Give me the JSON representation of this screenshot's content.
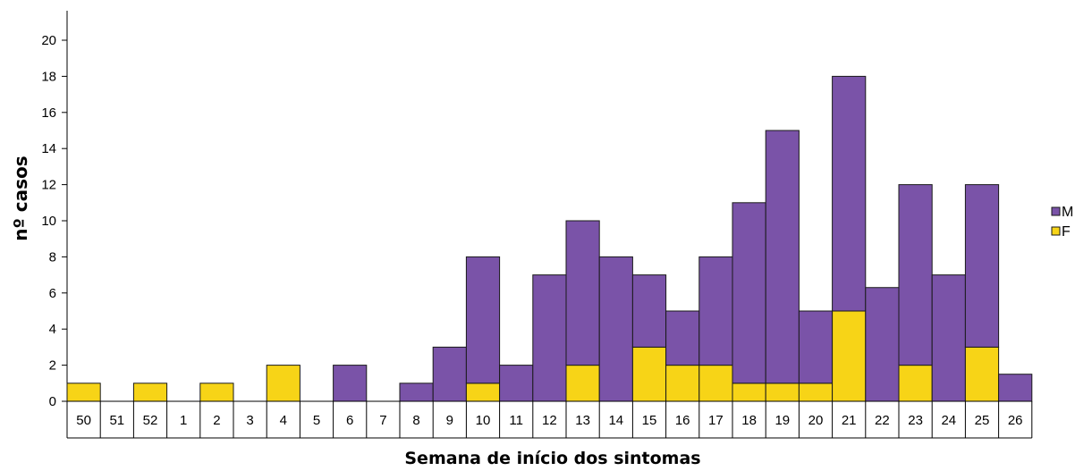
{
  "chart_data": {
    "type": "bar",
    "stacked": true,
    "categories": [
      "50",
      "51",
      "52",
      "1",
      "2",
      "3",
      "4",
      "5",
      "6",
      "7",
      "8",
      "9",
      "10",
      "11",
      "12",
      "13",
      "14",
      "15",
      "16",
      "17",
      "18",
      "19",
      "20",
      "21",
      "22",
      "23",
      "24",
      "25",
      "26"
    ],
    "series": [
      {
        "name": "F",
        "color": "#f7d417",
        "values": [
          1,
          0,
          1,
          0,
          1,
          0,
          2,
          0,
          0,
          0,
          0,
          0,
          1,
          0,
          0,
          2,
          0,
          3,
          2,
          2,
          1,
          1,
          1,
          5,
          0,
          2,
          0,
          3,
          0
        ]
      },
      {
        "name": "M",
        "color": "#7a53a8",
        "values": [
          0,
          0,
          0,
          0,
          0,
          0,
          0,
          0,
          2,
          0,
          1,
          3,
          7,
          2,
          7,
          8,
          8,
          4,
          3,
          6,
          10,
          14,
          4,
          13,
          6.3,
          10,
          7,
          9,
          1.5
        ]
      }
    ],
    "xlabel": "Semana de início dos sintomas",
    "ylabel": "nº casos",
    "ylim": [
      0,
      20
    ],
    "yticks": [
      0,
      2,
      4,
      6,
      8,
      10,
      12,
      14,
      16,
      18,
      20
    ],
    "legend_position": "right",
    "grid": false
  }
}
